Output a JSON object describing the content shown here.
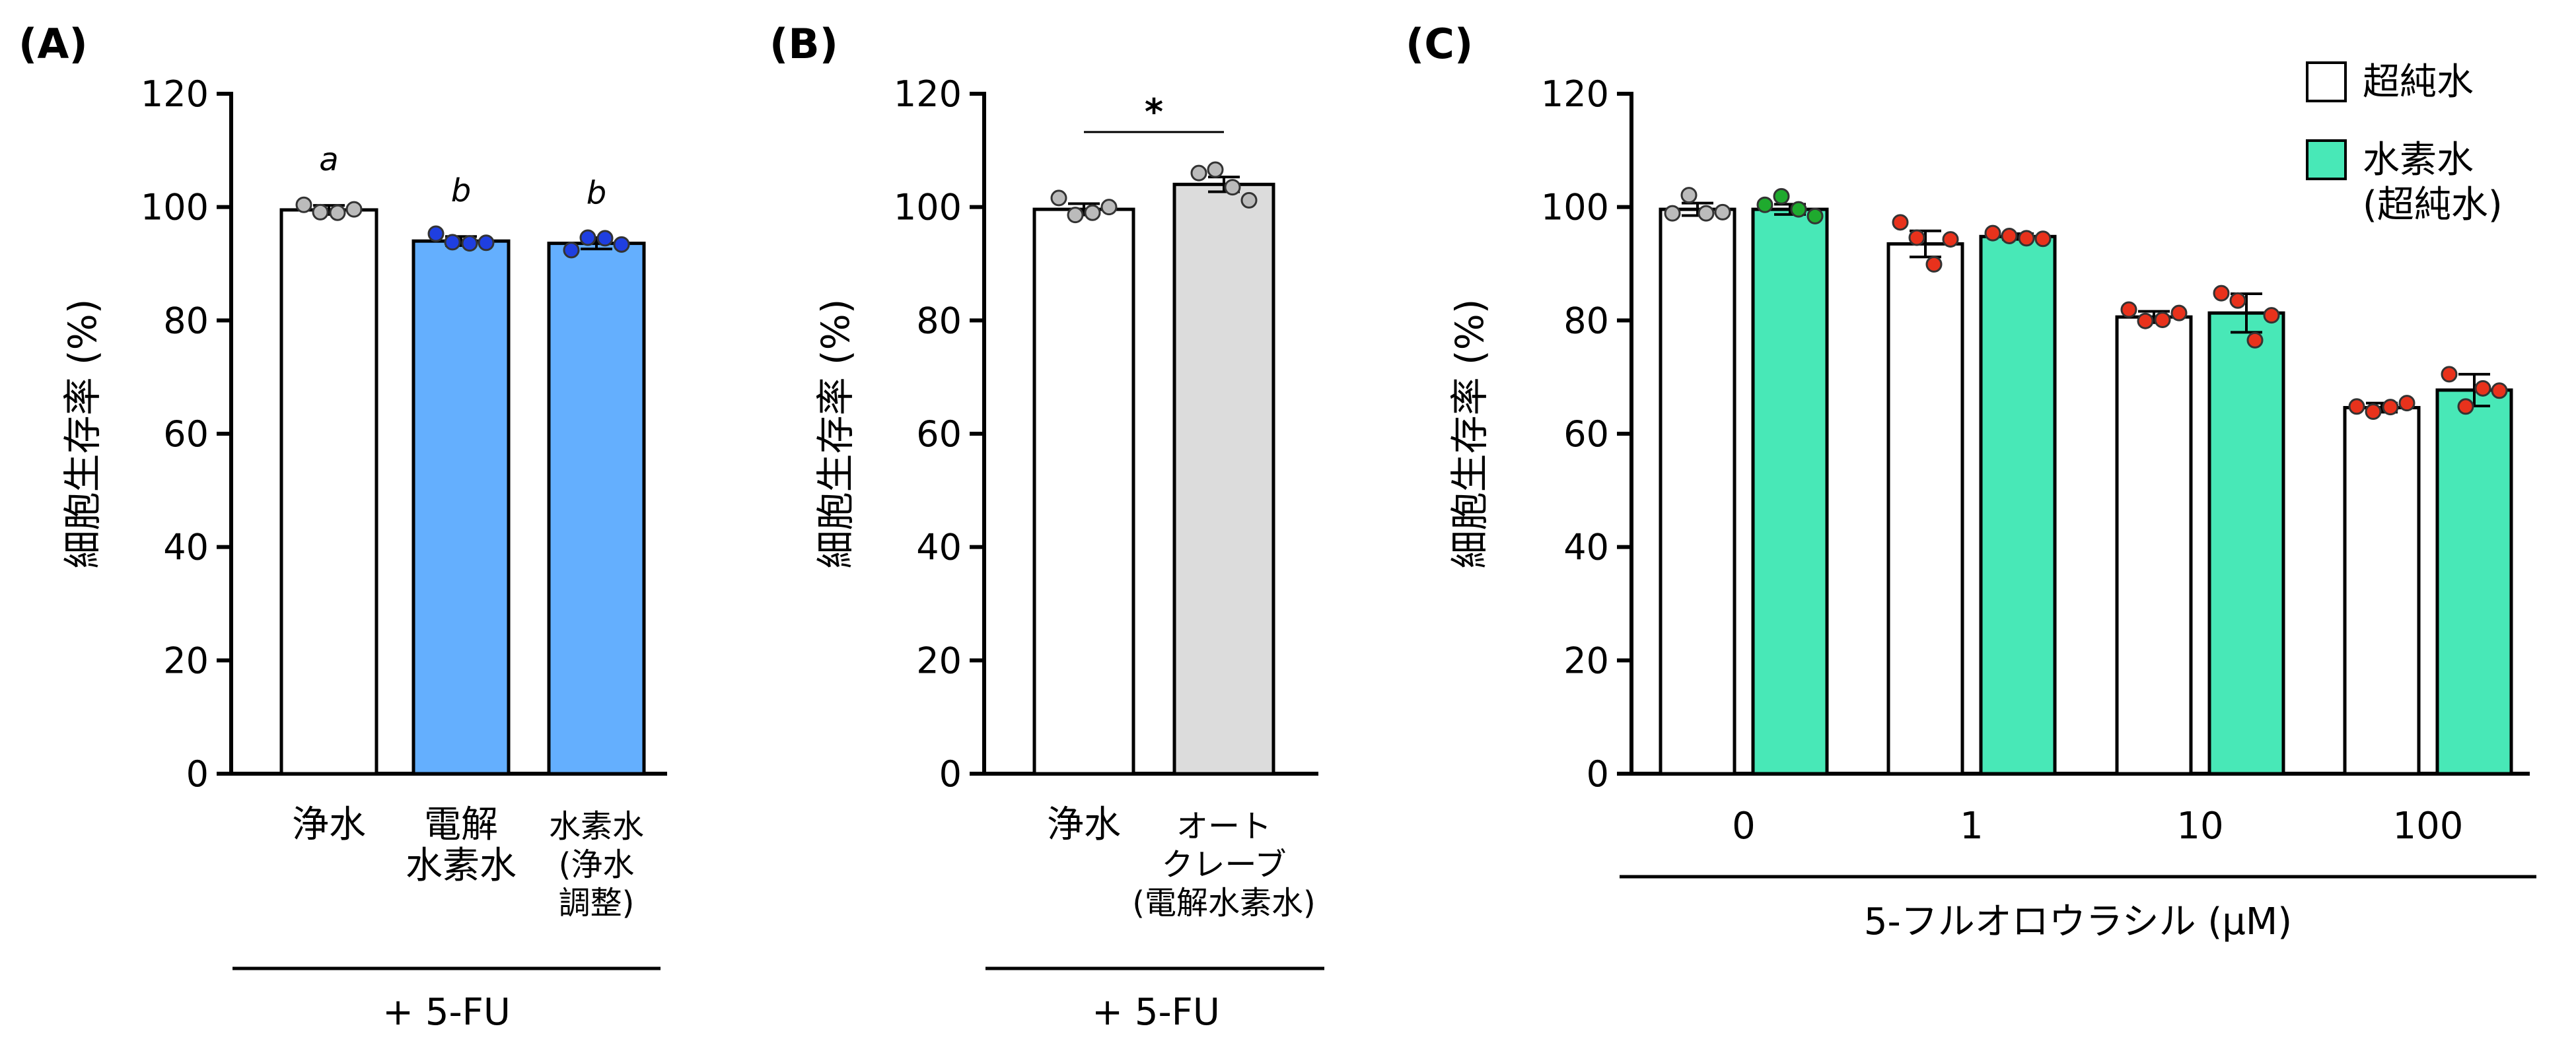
{
  "chart_data": [
    {
      "panel": "(A)",
      "type": "bar",
      "ylabel": "細胞生存率 (%)",
      "ylim": [
        0,
        120
      ],
      "yticks": [
        0,
        20,
        40,
        60,
        80,
        100,
        120
      ],
      "group_label": "+ 5-FU",
      "bars": [
        {
          "label": [
            "浄水"
          ],
          "value": 99.5,
          "err": 0.8,
          "color": "#ffffff",
          "dot_color": "#bbbbbb",
          "points": [
            100.4,
            99.1,
            99.0,
            99.6
          ],
          "sig": "a"
        },
        {
          "label": [
            "電解",
            "水素水"
          ],
          "value": 94.0,
          "err": 0.8,
          "color": "#64affe",
          "dot_color": "#1f3fe0",
          "points": [
            95.3,
            93.8,
            93.6,
            93.7
          ],
          "sig": "b"
        },
        {
          "label": [
            "水素水",
            "(浄水",
            "調整)"
          ],
          "value": 93.6,
          "err": 1.0,
          "color": "#64affe",
          "dot_color": "#1f3fe0",
          "points": [
            92.4,
            94.6,
            94.5,
            93.4
          ],
          "sig": "b"
        }
      ]
    },
    {
      "panel": "(B)",
      "type": "bar",
      "ylabel": "細胞生存率 (%)",
      "ylim": [
        0,
        120
      ],
      "yticks": [
        0,
        20,
        40,
        60,
        80,
        100,
        120
      ],
      "group_label": "+ 5-FU",
      "significance": "*",
      "bars": [
        {
          "label": [
            "浄水"
          ],
          "value": 99.6,
          "err": 1.0,
          "color": "#ffffff",
          "dot_color": "#bbbbbb",
          "points": [
            101.6,
            98.6,
            99.0,
            100.0
          ]
        },
        {
          "label": [
            "オート",
            "クレーブ",
            "(電解水素水)"
          ],
          "value": 104.0,
          "err": 1.3,
          "color": "#dcdcdc",
          "dot_color": "#bbbbbb",
          "points": [
            106.0,
            106.6,
            103.5,
            101.2
          ]
        }
      ]
    },
    {
      "panel": "(C)",
      "type": "bar",
      "ylabel": "細胞生存率 (%)",
      "xlabel": "5-フルオロウラシル (μM)",
      "ylim": [
        0,
        120
      ],
      "yticks": [
        0,
        20,
        40,
        60,
        80,
        100,
        120
      ],
      "categories": [
        "0",
        "1",
        "10",
        "100"
      ],
      "series": [
        {
          "name": "超純水",
          "color": "#ffffff",
          "values": [
            99.6,
            93.5,
            80.6,
            64.6
          ],
          "err": [
            1.1,
            2.3,
            1.0,
            0.8
          ],
          "points": [
            [
              98.9,
              102.1,
              98.9,
              99.1
            ],
            [
              97.3,
              94.6,
              89.9,
              94.3
            ],
            [
              81.9,
              79.9,
              80.1,
              81.3
            ],
            [
              64.8,
              63.9,
              64.7,
              65.4
            ]
          ]
        },
        {
          "name": "水素水\n(超純水)",
          "color": "#48e8b7",
          "values": [
            99.6,
            94.8,
            81.3,
            67.7
          ],
          "err": [
            0.9,
            0.5,
            3.4,
            2.8
          ],
          "points": [
            [
              100.4,
              101.9,
              99.6,
              98.4
            ],
            [
              95.4,
              94.9,
              94.5,
              94.4
            ],
            [
              84.8,
              83.5,
              76.5,
              80.9
            ],
            [
              70.5,
              64.8,
              68.0,
              67.6
            ]
          ]
        }
      ],
      "dot_color": "#e8321c",
      "dot_color_zero": [
        "#bbbbbb",
        "#1faa2e"
      ]
    }
  ],
  "legend": [
    {
      "label": "超純水",
      "color": "#ffffff"
    },
    {
      "label_lines": [
        "水素水",
        "(超純水)"
      ],
      "color": "#48e8b7"
    }
  ]
}
